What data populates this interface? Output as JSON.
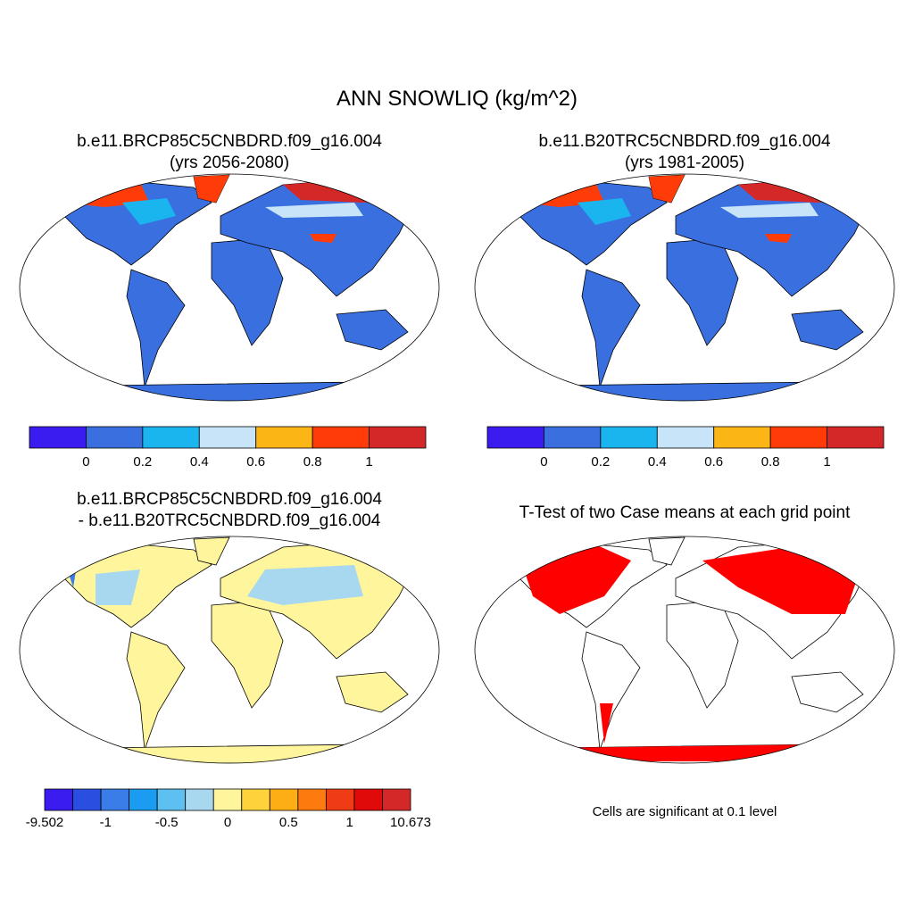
{
  "title": "ANN SNOWLIQ (kg/m^2)",
  "panels": [
    {
      "title": [
        "b.e11.BRCP85C5CNBDRD.f09_g16.004",
        "(yrs 2056-2080)"
      ],
      "colorbar": {
        "colors": [
          "#3a1cf0",
          "#3a6fe0",
          "#1ab4ee",
          "#c8e4f8",
          "#fbb514",
          "#ff3c08",
          "#d42828"
        ],
        "labels": [
          "0",
          "0.2",
          "0.4",
          "0.6",
          "0.8",
          "1"
        ]
      }
    },
    {
      "title": [
        "b.e11.B20TRC5CNBDRD.f09_g16.004",
        "(yrs 1981-2005)"
      ],
      "colorbar": {
        "colors": [
          "#3a1cf0",
          "#3a6fe0",
          "#1ab4ee",
          "#c8e4f8",
          "#fbb514",
          "#ff3c08",
          "#d42828"
        ],
        "labels": [
          "0",
          "0.2",
          "0.4",
          "0.6",
          "0.8",
          "1"
        ]
      }
    },
    {
      "title": [
        "b.e11.BRCP85C5CNBDRD.f09_g16.004",
        "- b.e11.B20TRC5CNBDRD.f09_g16.004"
      ],
      "colorbar": {
        "colors": [
          "#3a1cf0",
          "#2a4fe0",
          "#3a7de8",
          "#1a9cf0",
          "#5ec0f0",
          "#a8d8f0",
          "#fff59c",
          "#fdd23a",
          "#fcae14",
          "#fc7a0e",
          "#f03c14",
          "#e00a0a",
          "#d42828"
        ],
        "labels": [
          "-9.502",
          "-1",
          "-0.5",
          "0",
          "0.5",
          "1",
          "10.673"
        ]
      }
    },
    {
      "title": [
        "T-Test of two Case means at each grid point"
      ],
      "note": "Cells are significant at 0.1 level"
    }
  ]
}
